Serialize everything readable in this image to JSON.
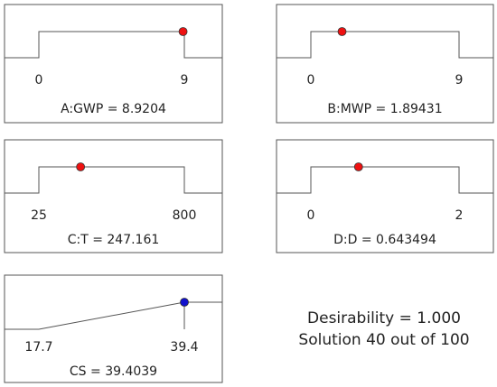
{
  "colors": {
    "frame": "#555555",
    "factor_marker": "#ee1111",
    "response_marker": "#1111cc",
    "text": "#222222"
  },
  "chart_data": [
    {
      "type": "line",
      "variable": "A:GWP",
      "role": "factor",
      "range": [
        0,
        9
      ],
      "tick_labels": [
        "0",
        "9"
      ],
      "setting": 8.9204,
      "caption": "A:GWP = 8.9204"
    },
    {
      "type": "line",
      "variable": "B:MWP",
      "role": "factor",
      "range": [
        0,
        9
      ],
      "tick_labels": [
        "0",
        "9"
      ],
      "setting": 1.89431,
      "caption": "B:MWP = 1.89431"
    },
    {
      "type": "line",
      "variable": "C:T",
      "role": "factor",
      "range": [
        25,
        800
      ],
      "tick_labels": [
        "25",
        "800"
      ],
      "setting": 247.161,
      "caption": "C:T = 247.161"
    },
    {
      "type": "line",
      "variable": "D:D",
      "role": "factor",
      "range": [
        0,
        2
      ],
      "tick_labels": [
        "0",
        "2"
      ],
      "setting": 0.643494,
      "caption": "D:D = 0.643494"
    },
    {
      "type": "line",
      "variable": "CS",
      "role": "response",
      "goal": "maximize",
      "range": [
        17.7,
        39.4
      ],
      "tick_labels": [
        "17.7",
        "39.4"
      ],
      "setting": 39.4039,
      "caption": "CS = 39.4039"
    }
  ],
  "summary": {
    "desirability": "Desirability = 1.000",
    "solution": "Solution 40 out of 100"
  }
}
